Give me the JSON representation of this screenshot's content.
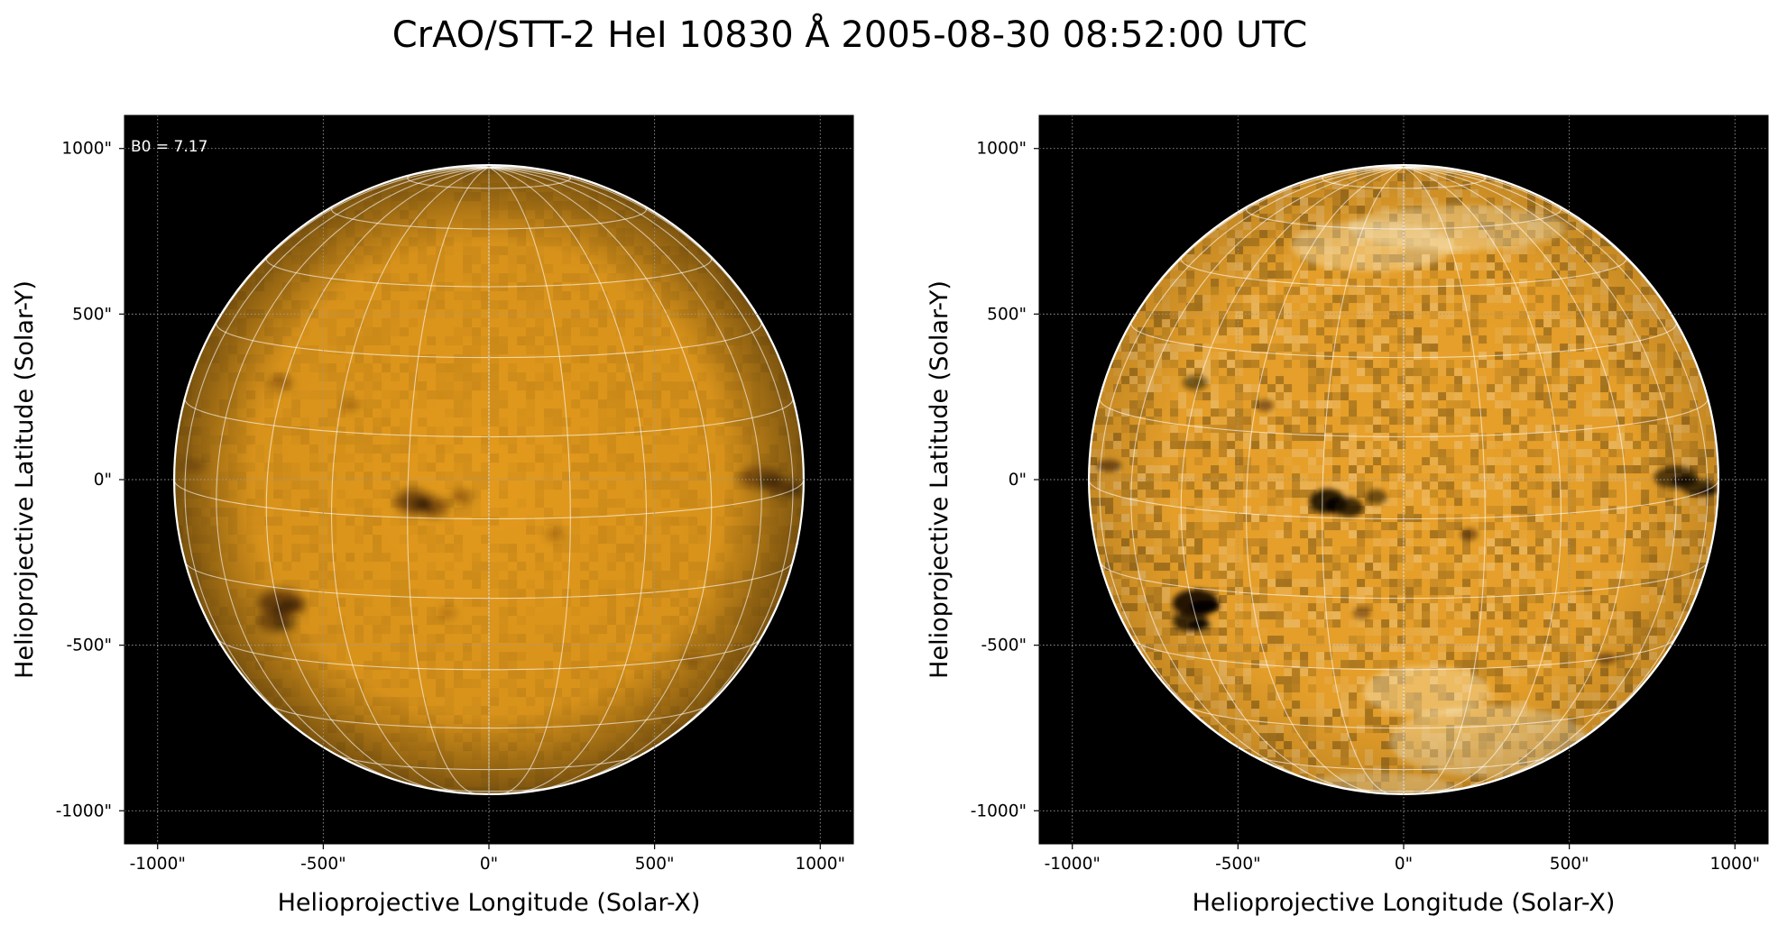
{
  "figure": {
    "title": "CrAO/STT-2 HeI 10830 Å 2005-08-30 08:52:00 UTC"
  },
  "colors": {
    "background": "#000000",
    "disk_base": "#e39a1c",
    "limb_circle": "#ffffff",
    "grid": "#ffffff"
  },
  "panels": [
    {
      "id": "left",
      "variant": "smooth",
      "annotation": "B0 = 7.17",
      "xlabel": "Helioprojective Longitude (Solar-X)",
      "ylabel": "Helioprojective Latitude (Solar-Y)"
    },
    {
      "id": "right",
      "variant": "contrast",
      "annotation": "",
      "xlabel": "Helioprojective Longitude (Solar-X)",
      "ylabel": "Helioprojective Latitude (Solar-Y)"
    }
  ],
  "axes": {
    "xlim": [
      -1100,
      1100
    ],
    "ylim": [
      -1100,
      1100
    ],
    "ticks": [
      -1000,
      -500,
      0,
      500,
      1000
    ],
    "tick_labels": [
      "-1000\"",
      "-500\"",
      "0\"",
      "500\"",
      "1000\""
    ],
    "solar_radius_arcsec": 950,
    "b0_deg": 7.17,
    "grid_step_deg": 15
  },
  "features": [
    {
      "lon": -14,
      "lat": 3,
      "size": 1.0,
      "strength": 0.9
    },
    {
      "lon": -10,
      "lat": 2,
      "size": 0.8,
      "strength": 0.8
    },
    {
      "lon": -5,
      "lat": 4,
      "size": 0.6,
      "strength": 0.6
    },
    {
      "lon": -44,
      "lat": -18,
      "size": 1.3,
      "strength": 0.95
    },
    {
      "lon": -47,
      "lat": -22,
      "size": 1.0,
      "strength": 0.8
    },
    {
      "lon": 60,
      "lat": 4,
      "size": 1.2,
      "strength": 0.7
    },
    {
      "lon": 70,
      "lat": 1,
      "size": 1.0,
      "strength": 0.75
    },
    {
      "lon": -46,
      "lat": 23,
      "size": 0.7,
      "strength": 0.55
    },
    {
      "lon": -28,
      "lat": 20,
      "size": 0.5,
      "strength": 0.45
    },
    {
      "lon": 12,
      "lat": -3,
      "size": 0.5,
      "strength": 0.45
    },
    {
      "lon": -8,
      "lat": -18,
      "size": 0.5,
      "strength": 0.4
    },
    {
      "lon": 48,
      "lat": -30,
      "size": 0.6,
      "strength": 0.45
    },
    {
      "lon": -70,
      "lat": 5,
      "size": 0.7,
      "strength": 0.5
    }
  ]
}
